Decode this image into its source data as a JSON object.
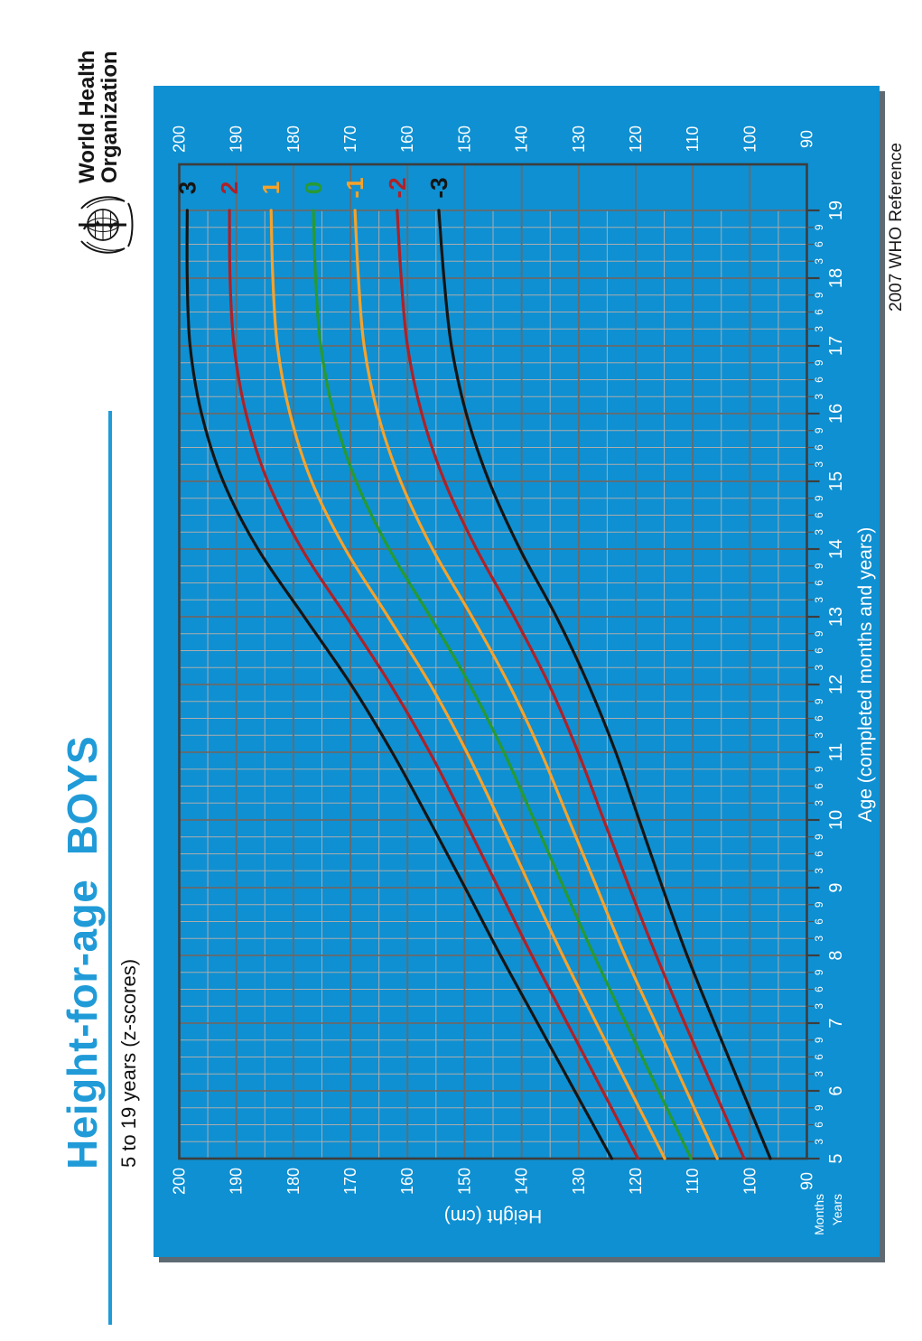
{
  "header": {
    "title": "Height-for-age  BOYS",
    "subtitle": "5 to 19 years (z-scores)"
  },
  "logo": {
    "line1": "World Health",
    "line2": "Organization"
  },
  "reference": "2007 WHO Reference",
  "axis": {
    "x_title": "Age (completed months and years)",
    "y_title": "Height (cm)",
    "months_row_label": "Months",
    "years_row_label": "Years"
  },
  "colors": {
    "frame_blue": "#0F90D2",
    "title_blue": "#209BD8",
    "curve_black": "#151515",
    "curve_red": "#AF2127",
    "curve_orange": "#F7A229",
    "curve_green": "#279A33",
    "grid_minor": "#ACACAC",
    "grid_major": "#6A6A6A",
    "plot_border": "#3D3D3D",
    "label_white": "#FFFFFF"
  },
  "chart_data": {
    "type": "line",
    "title": "Height-for-age BOYS, 5 to 19 years (z-scores)",
    "xlabel": "Age (completed months and years)",
    "ylabel": "Height (cm)",
    "xlim": [
      5,
      19.7
    ],
    "ylim": [
      90,
      200
    ],
    "grid": "on",
    "legend_position": "right-end-of-curves",
    "x": [
      5,
      6,
      7,
      8,
      9,
      10,
      11,
      12,
      13,
      14,
      15,
      16,
      17,
      18,
      19
    ],
    "x_minor_tick_labels": [
      "3",
      "6",
      "9"
    ],
    "y_major_ticks": [
      90,
      100,
      110,
      120,
      130,
      140,
      150,
      160,
      170,
      180,
      190,
      200
    ],
    "y_minor_step": 5,
    "x_minor_step_years": 0.25,
    "series": [
      {
        "name": "3",
        "z": 3,
        "color_key": "curve_black",
        "values": [
          124.2,
          130.7,
          137.2,
          143.7,
          149.9,
          156.2,
          162.7,
          169.9,
          178.1,
          186.2,
          192.3,
          196.1,
          198.1,
          198.6,
          198.6
        ]
      },
      {
        "name": "2",
        "z": 2,
        "color_key": "curve_red",
        "values": [
          119.6,
          125.8,
          132.0,
          138.2,
          144.1,
          150.0,
          156.1,
          163.0,
          170.7,
          178.5,
          184.5,
          188.3,
          190.4,
          191.1,
          191.2
        ]
      },
      {
        "name": "1",
        "z": 1,
        "color_key": "curve_orange",
        "values": [
          114.9,
          120.9,
          126.9,
          132.8,
          138.4,
          143.9,
          149.6,
          156.0,
          163.4,
          170.9,
          176.8,
          180.6,
          182.8,
          183.6,
          183.9
        ]
      },
      {
        "name": "0",
        "z": 0,
        "color_key": "curve_green",
        "values": [
          110.3,
          116.0,
          121.7,
          127.3,
          132.6,
          137.8,
          143.1,
          149.1,
          156.0,
          163.2,
          169.0,
          172.9,
          175.2,
          176.1,
          176.5
        ]
      },
      {
        "name": "-1",
        "z": -1,
        "color_key": "curve_orange",
        "values": [
          105.7,
          111.1,
          116.5,
          121.9,
          126.8,
          131.7,
          136.6,
          142.2,
          148.7,
          155.6,
          161.2,
          165.2,
          167.6,
          168.6,
          169.2
        ]
      },
      {
        "name": "-2",
        "z": -2,
        "color_key": "curve_red",
        "values": [
          101.0,
          106.2,
          111.4,
          116.4,
          121.1,
          125.6,
          130.1,
          135.2,
          141.3,
          147.9,
          153.5,
          157.5,
          160.0,
          161.1,
          161.8
        ]
      },
      {
        "name": "-3",
        "z": -3,
        "color_key": "curve_black",
        "values": [
          96.4,
          101.3,
          106.2,
          111.0,
          115.3,
          119.4,
          123.5,
          128.3,
          133.9,
          140.3,
          145.7,
          149.7,
          152.3,
          153.6,
          154.5
        ]
      }
    ]
  }
}
